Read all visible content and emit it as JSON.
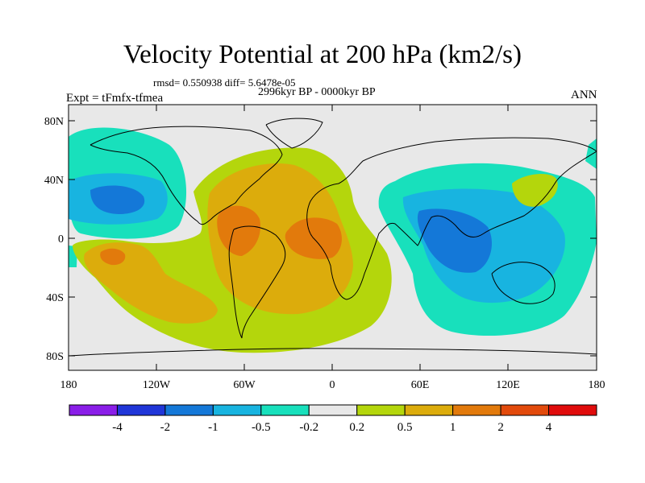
{
  "header": {
    "title": "Velocity Potential at 200 hPa (km2/s)",
    "stats": "rmsd= 0.550938 diff= 5.6478e-05",
    "period": "2996kyr BP - 0000kyr BP",
    "experiment": "Expt = tFmfx-tfmea",
    "season": "ANN"
  },
  "axes": {
    "x_ticks": [
      "180",
      "120W",
      "60W",
      "0",
      "60E",
      "120E",
      "180"
    ],
    "y_ticks": [
      "80N",
      "40N",
      "0",
      "40S",
      "80S"
    ]
  },
  "colorbar": {
    "colors": [
      "#8a1ee8",
      "#2036d8",
      "#1478d8",
      "#18b4e0",
      "#18e0bc",
      "#e8e8e8",
      "#b4d60c",
      "#dcac0c",
      "#e27a0c",
      "#e24a0c",
      "#e00c0c"
    ],
    "labels": [
      "-4",
      "-2",
      "-1",
      "-0.5",
      "-0.2",
      "0.2",
      "0.5",
      "1",
      "2",
      "4"
    ]
  },
  "field_colors": {
    "neutral": "#e8e8e8",
    "neg_02": "#18e0bc",
    "neg_05": "#18b4e0",
    "neg_1": "#1478d8",
    "pos_02": "#b4d60c",
    "pos_05": "#dcac0c",
    "pos_1": "#e27a0c",
    "pos_2": "#e24a0c"
  }
}
